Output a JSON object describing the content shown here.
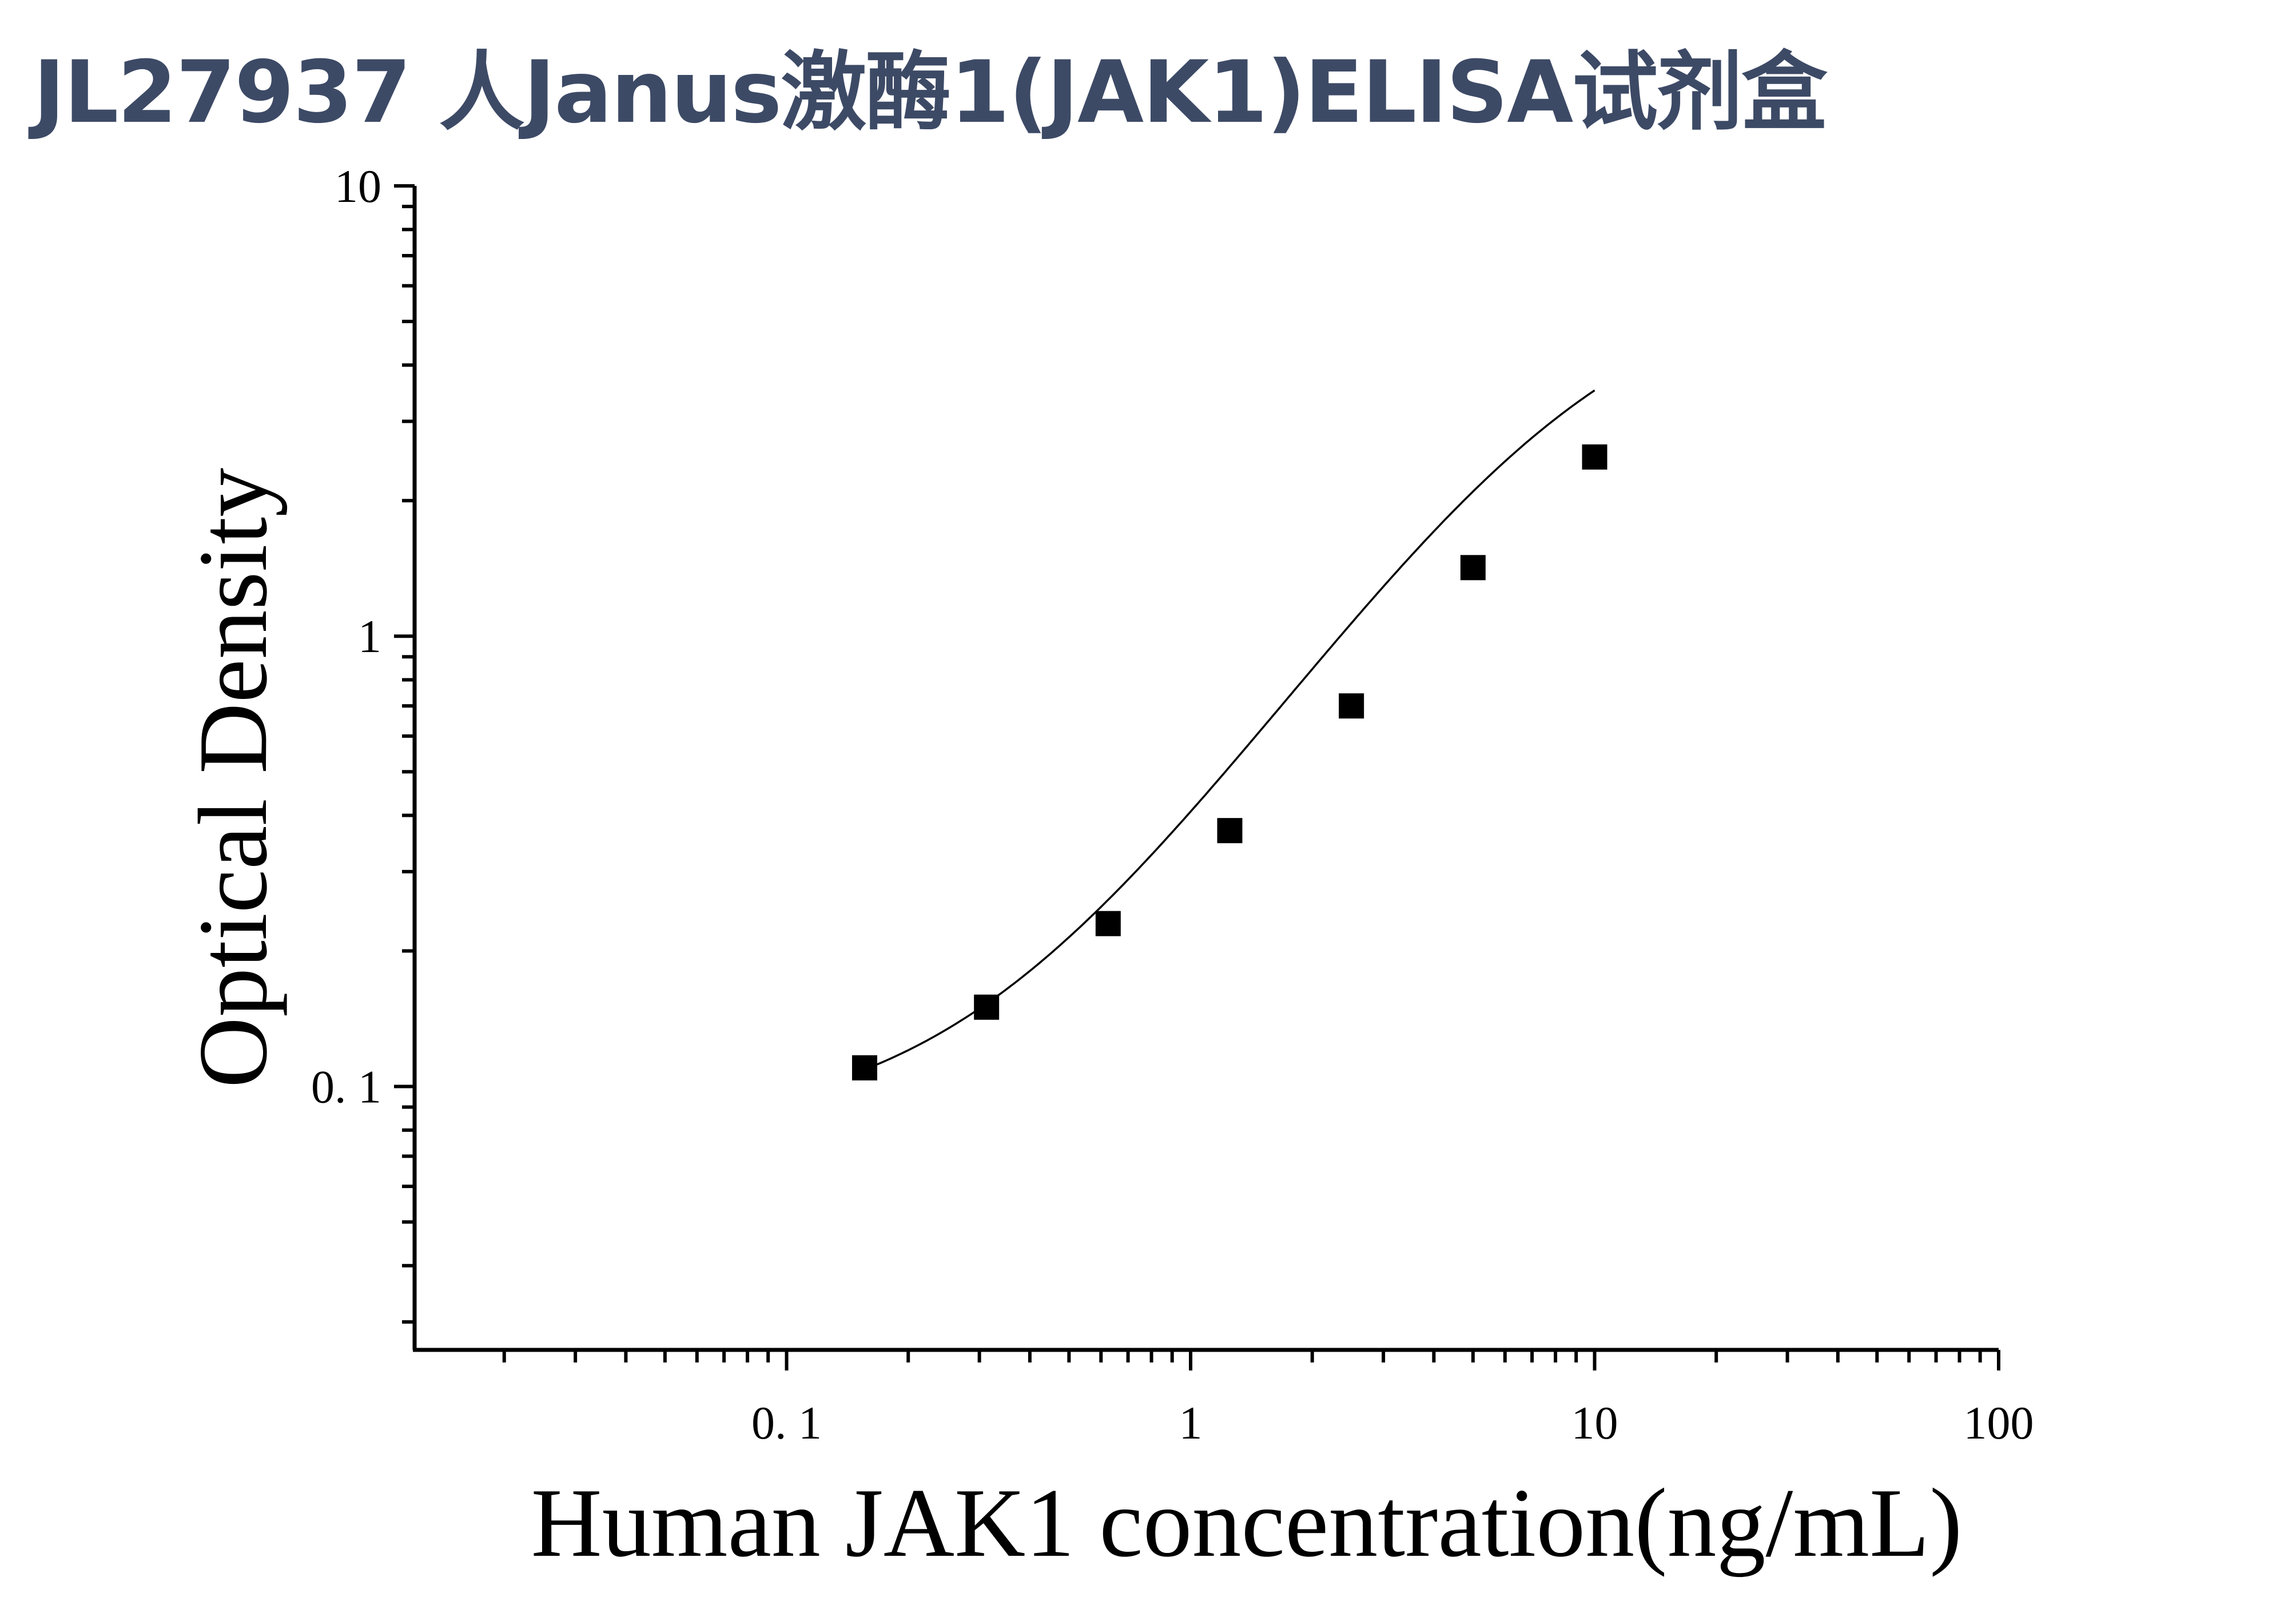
{
  "page_title": "JL27937 人Janus激酶1(JAK1)ELISA试剂盒",
  "chart_data": {
    "type": "scatter",
    "xlabel": "Human JAK1 concentration(ng/mL)",
    "ylabel": "Optical Density",
    "x_scale": "log",
    "y_scale": "log",
    "xlim": [
      0.012,
      100
    ],
    "ylim": [
      0.026,
      10
    ],
    "x_ticks": [
      {
        "value": 0.1,
        "label": "0. 1"
      },
      {
        "value": 1,
        "label": "1"
      },
      {
        "value": 10,
        "label": "10"
      },
      {
        "value": 100,
        "label": "100"
      }
    ],
    "y_ticks": [
      {
        "value": 0.1,
        "label": "0. 1"
      },
      {
        "value": 1,
        "label": "1"
      },
      {
        "value": 10,
        "label": "10"
      }
    ],
    "grid": false,
    "points": [
      {
        "x": 0.156,
        "y": 0.11
      },
      {
        "x": 0.3125,
        "y": 0.15
      },
      {
        "x": 0.625,
        "y": 0.23
      },
      {
        "x": 1.25,
        "y": 0.37
      },
      {
        "x": 2.5,
        "y": 0.7
      },
      {
        "x": 5,
        "y": 1.42
      },
      {
        "x": 10,
        "y": 2.5
      }
    ],
    "fit_curve": {
      "type": "4PL",
      "A": 0.08,
      "B": 1.33,
      "C": 9.0,
      "D": 6.5,
      "x_range": [
        0.156,
        10
      ]
    }
  }
}
